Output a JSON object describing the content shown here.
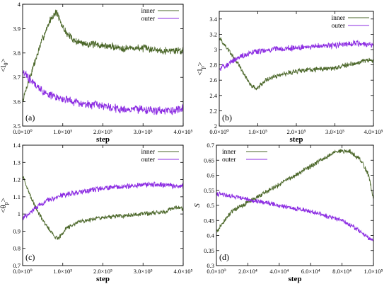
{
  "chart_data": [
    {
      "type": "line",
      "panel_label": "(a)",
      "xlabel": "step",
      "ylabel_main": "<l",
      "ylabel_sub": "0",
      "ylabel_close": ">",
      "xlim": [
        0,
        400000
      ],
      "ylim": [
        3.5,
        4.0
      ],
      "xticks": [
        0,
        100000,
        200000,
        300000,
        400000
      ],
      "xtick_labels": [
        "0.0×10⁰",
        "1.0×10⁵",
        "2.0×10⁵",
        "3.0×10⁵",
        "4.0×10⁵"
      ],
      "yticks": [
        3.5,
        3.6,
        3.7,
        3.8,
        3.9,
        4.0
      ],
      "ytick_labels": [
        "3.5",
        "3.6",
        "3.7",
        "3.8",
        "3.9",
        "4"
      ],
      "legend_position": "top-right",
      "series": [
        {
          "name": "inner",
          "color": "#4a6628",
          "noise": 0.012,
          "x": [
            0,
            10000,
            30000,
            50000,
            70000,
            85000,
            95000,
            110000,
            130000,
            150000,
            200000,
            250000,
            300000,
            350000,
            400000
          ],
          "y": [
            3.6,
            3.66,
            3.76,
            3.86,
            3.94,
            3.97,
            3.92,
            3.88,
            3.85,
            3.84,
            3.83,
            3.82,
            3.82,
            3.81,
            3.81
          ]
        },
        {
          "name": "outer",
          "color": "#8b2be2",
          "noise": 0.014,
          "x": [
            0,
            20000,
            50000,
            100000,
            150000,
            200000,
            250000,
            300000,
            350000,
            400000
          ],
          "y": [
            3.72,
            3.69,
            3.64,
            3.61,
            3.59,
            3.58,
            3.57,
            3.57,
            3.56,
            3.57
          ]
        }
      ]
    },
    {
      "type": "line",
      "panel_label": "(b)",
      "xlabel": "step",
      "ylabel_main": "<l",
      "ylabel_sub": "p",
      "ylabel_close": ">",
      "xlim": [
        0,
        400000
      ],
      "ylim": [
        2.0,
        3.5
      ],
      "xticks": [
        0,
        100000,
        200000,
        300000,
        400000
      ],
      "xtick_labels": [
        "0.0×10⁰",
        "1.0×10⁵",
        "2.0×10⁵",
        "3.0×10⁵",
        "4.0×10⁵"
      ],
      "yticks": [
        2.0,
        2.2,
        2.4,
        2.6,
        2.8,
        3.0,
        3.2,
        3.4
      ],
      "ytick_labels": [
        "2",
        "2.2",
        "2.4",
        "2.6",
        "2.8",
        "3",
        "3.2",
        "3.4"
      ],
      "legend_position": "top-right",
      "series": [
        {
          "name": "inner",
          "color": "#4a6628",
          "noise": 0.025,
          "x": [
            0,
            20000,
            50000,
            80000,
            95000,
            120000,
            150000,
            200000,
            250000,
            300000,
            350000,
            380000,
            400000
          ],
          "y": [
            3.15,
            3.02,
            2.8,
            2.55,
            2.48,
            2.6,
            2.66,
            2.72,
            2.74,
            2.76,
            2.82,
            2.86,
            2.85
          ]
        },
        {
          "name": "outer",
          "color": "#8b2be2",
          "noise": 0.03,
          "x": [
            0,
            20000,
            50000,
            100000,
            150000,
            200000,
            250000,
            300000,
            350000,
            380000,
            400000
          ],
          "y": [
            2.75,
            2.8,
            2.9,
            2.98,
            3.01,
            3.02,
            3.04,
            3.06,
            3.08,
            3.07,
            3.06
          ]
        }
      ]
    },
    {
      "type": "line",
      "panel_label": "(c)",
      "xlabel": "step",
      "ylabel_main": "<θ",
      "ylabel_sub": "p",
      "ylabel_close": ">",
      "xlim": [
        0,
        400000
      ],
      "ylim": [
        0.7,
        1.4
      ],
      "xticks": [
        0,
        100000,
        200000,
        300000,
        400000
      ],
      "xtick_labels": [
        "0.0×10⁰",
        "1.0×10⁵",
        "2.0×10⁵",
        "3.0×10⁵",
        "4.0×10⁵"
      ],
      "yticks": [
        0.7,
        0.8,
        0.9,
        1.0,
        1.1,
        1.2,
        1.3,
        1.4
      ],
      "ytick_labels": [
        "0.7",
        "0.8",
        "0.9",
        "1",
        "1.1",
        "1.2",
        "1.3",
        "1.4"
      ],
      "legend_position": "top-right",
      "series": [
        {
          "name": "inner",
          "color": "#4a6628",
          "noise": 0.01,
          "x": [
            0,
            20000,
            50000,
            80000,
            90000,
            110000,
            150000,
            200000,
            250000,
            300000,
            350000,
            380000,
            400000
          ],
          "y": [
            1.22,
            1.1,
            0.96,
            0.87,
            0.86,
            0.92,
            0.96,
            0.98,
            0.99,
            1.0,
            1.01,
            1.04,
            1.03
          ]
        },
        {
          "name": "outer",
          "color": "#8b2be2",
          "noise": 0.012,
          "x": [
            0,
            10000,
            30000,
            60000,
            100000,
            150000,
            200000,
            250000,
            300000,
            350000,
            400000
          ],
          "y": [
            0.98,
            0.99,
            1.03,
            1.08,
            1.11,
            1.13,
            1.15,
            1.16,
            1.17,
            1.17,
            1.16
          ]
        }
      ]
    },
    {
      "type": "line",
      "panel_label": "(d)",
      "xlabel": "step",
      "ylabel_main": "S",
      "ylabel_sub": "",
      "ylabel_close": "",
      "xlim": [
        0,
        100000
      ],
      "ylim": [
        0.3,
        0.7
      ],
      "xticks": [
        0,
        20000,
        40000,
        60000,
        80000,
        100000
      ],
      "xtick_labels": [
        "0.0×10⁰",
        "2.0×10⁴",
        "4.0×10⁴",
        "6.0×10⁴",
        "8.0×10⁴",
        "1.0×10⁵"
      ],
      "yticks": [
        0.3,
        0.35,
        0.4,
        0.45,
        0.5,
        0.55,
        0.6,
        0.65,
        0.7
      ],
      "ytick_labels": [
        "0.3",
        "0.35",
        "0.4",
        "0.45",
        "0.5",
        "0.55",
        "0.6",
        "0.65",
        "0.7"
      ],
      "legend_position": "top-left",
      "series": [
        {
          "name": "inner",
          "color": "#4a6628",
          "noise": 0.006,
          "x": [
            0,
            5000,
            10000,
            20000,
            30000,
            40000,
            50000,
            60000,
            70000,
            76000,
            85000,
            92000,
            97000,
            100000
          ],
          "y": [
            0.41,
            0.45,
            0.48,
            0.51,
            0.54,
            0.57,
            0.6,
            0.63,
            0.66,
            0.68,
            0.68,
            0.65,
            0.6,
            0.52
          ]
        },
        {
          "name": "outer",
          "color": "#8b2be2",
          "noise": 0.006,
          "x": [
            0,
            20000,
            40000,
            60000,
            80000,
            90000,
            100000
          ],
          "y": [
            0.54,
            0.52,
            0.5,
            0.48,
            0.45,
            0.42,
            0.38
          ]
        }
      ]
    }
  ]
}
